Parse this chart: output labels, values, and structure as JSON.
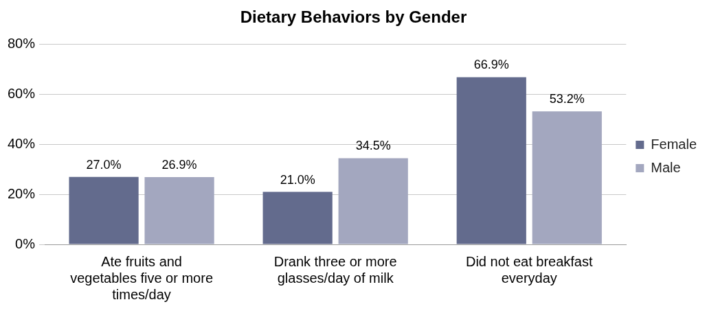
{
  "chart_data": {
    "type": "bar",
    "title": "Dietary Behaviors by Gender",
    "categories": [
      "Ate fruits and vegetables five or more times/day",
      "Drank three or more glasses/day of milk",
      "Did not eat breakfast everyday"
    ],
    "series": [
      {
        "name": "Female",
        "color": "#636b8d",
        "values": [
          27.0,
          21.0,
          66.9
        ],
        "value_labels": [
          "27.0%",
          "21.0%",
          "66.9%"
        ]
      },
      {
        "name": "Male",
        "color": "#a3a7bf",
        "values": [
          26.9,
          34.5,
          53.2
        ],
        "value_labels": [
          "26.9%",
          "34.5%",
          "53.2%"
        ]
      }
    ],
    "ylim": [
      0,
      80
    ],
    "yticks": [
      {
        "value": 0,
        "label": "0%"
      },
      {
        "value": 20,
        "label": "20%"
      },
      {
        "value": 40,
        "label": "40%"
      },
      {
        "value": 60,
        "label": "60%"
      },
      {
        "value": 80,
        "label": "80%"
      }
    ],
    "grid": "y",
    "legend": "right"
  }
}
